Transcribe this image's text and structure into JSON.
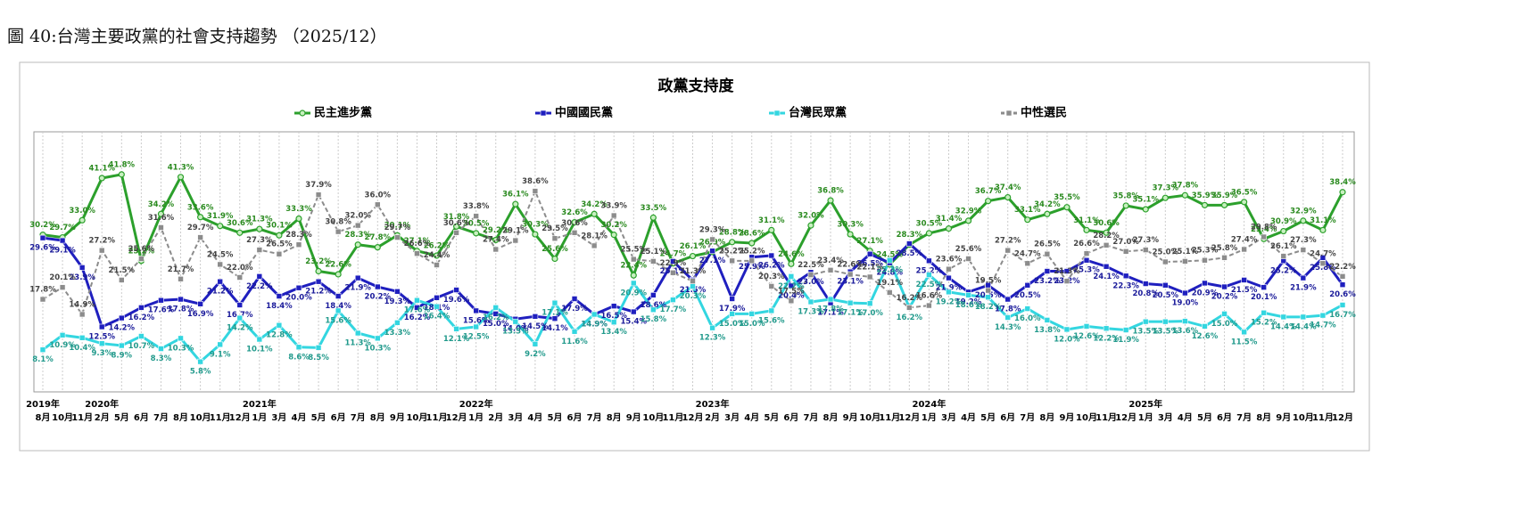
{
  "caption": "圖 40:台灣主要政黨的社會支持趨勢 （2025/12）",
  "chart_data": {
    "type": "line",
    "title": "政黨支持度",
    "ylim": [
      0,
      50
    ],
    "xgrid": true,
    "legend": "top",
    "categories": [
      "8月",
      "10月",
      "11月",
      "2月",
      "5月",
      "6月",
      "7月",
      "8月",
      "10月",
      "11月",
      "12月",
      "1月",
      "3月",
      "4月",
      "5月",
      "6月",
      "7月",
      "8月",
      "9月",
      "10月",
      "11月",
      "12月",
      "1月",
      "2月",
      "3月",
      "4月",
      "5月",
      "6月",
      "7月",
      "8月",
      "9月",
      "10月",
      "11月",
      "12月",
      "2月",
      "3月",
      "4月",
      "5月",
      "6月",
      "7月",
      "8月",
      "9月",
      "10月",
      "11月",
      "12月",
      "1月",
      "3月",
      "4月",
      "5月",
      "6月",
      "7月",
      "8月",
      "9月",
      "10月",
      "11月",
      "12月",
      "1月",
      "3月",
      "4月",
      "5月",
      "6月",
      "7月",
      "8月",
      "9月",
      "10月",
      "11月",
      "12月"
    ],
    "year_labels": [
      "2019年",
      null,
      null,
      "2020年",
      null,
      null,
      null,
      null,
      null,
      null,
      null,
      "2021年",
      null,
      null,
      null,
      null,
      null,
      null,
      null,
      null,
      null,
      null,
      "2022年",
      null,
      null,
      null,
      null,
      null,
      null,
      null,
      null,
      null,
      null,
      null,
      "2023年",
      null,
      null,
      null,
      null,
      null,
      null,
      null,
      null,
      null,
      null,
      "2024年",
      null,
      null,
      null,
      null,
      null,
      null,
      null,
      null,
      null,
      null,
      "2025年",
      null,
      null,
      null,
      null,
      null,
      null,
      null,
      null,
      null,
      null
    ],
    "series": [
      {
        "name": "民主進步黨",
        "color": "#2ca02c",
        "label_color": "#2a8a1f",
        "marker": "circle",
        "dash": false,
        "values": [
          30.2,
          29.7,
          33.0,
          41.1,
          41.8,
          25.2,
          34.2,
          41.3,
          33.6,
          31.9,
          30.6,
          31.3,
          30.1,
          33.3,
          23.2,
          22.6,
          28.3,
          27.8,
          30.1,
          27.1,
          26.2,
          31.8,
          30.5,
          29.2,
          36.1,
          30.3,
          25.6,
          32.6,
          34.2,
          30.2,
          22.4,
          33.5,
          24.7,
          26.1,
          26.9,
          28.8,
          28.6,
          31.1,
          24.6,
          32.0,
          36.8,
          30.3,
          27.1,
          24.5,
          28.3,
          30.5,
          31.4,
          32.9,
          36.7,
          37.4,
          33.1,
          34.2,
          35.5,
          31.1,
          30.6,
          35.8,
          35.1,
          37.3,
          37.8,
          35.9,
          35.9,
          36.5,
          29.4,
          30.9,
          32.9,
          31.1,
          38.4
        ],
        "value_labels": [
          "30.2%",
          "29.7%",
          "33.0%",
          "41.1%",
          "41.8%",
          "25.2%",
          "34.2%",
          "41.3%",
          "33.6%",
          "31.9%",
          "30.6%",
          "31.3%",
          "30.1%",
          "33.3%",
          "23.2%",
          "22.6%",
          "28.3%",
          "27.8%",
          "30.1%",
          "27.1%",
          "26.2%",
          "31.8%",
          "30.5%",
          "29.2%",
          "36.1%",
          "30.3%",
          "25.6%",
          "32.6%",
          "34.2%",
          "30.2%",
          "22.4%",
          "33.5%",
          "24.7%",
          "26.1%",
          "26.9%",
          "28.8%",
          "28.6%",
          "31.1%",
          "24.6%",
          "32.0%",
          "36.8%",
          "30.3%",
          "27.1%",
          "24.5%",
          "28.3%",
          "30.5%",
          "31.4%",
          "32.9%",
          "36.7%",
          "37.4%",
          "33.1%",
          "34.2%",
          "35.5%",
          "31.1%",
          "30.6%",
          "35.8%",
          "35.1%",
          "37.3%",
          "37.8%",
          "35.9%",
          "35.9%",
          "36.5%",
          "29.4%",
          "30.9%",
          "32.9%",
          "31.1%",
          "38.4%"
        ]
      },
      {
        "name": "中國國民黨",
        "color": "#1f1fbf",
        "label_color": "#1a1a9a",
        "marker": "square",
        "dash": false,
        "values": [
          29.6,
          29.1,
          23.9,
          12.5,
          14.2,
          16.2,
          17.6,
          17.8,
          16.9,
          21.2,
          16.7,
          22.2,
          18.4,
          20.0,
          21.2,
          18.4,
          21.9,
          20.2,
          19.3,
          16.2,
          18.1,
          19.6,
          15.6,
          15.0,
          14.0,
          14.5,
          14.1,
          17.9,
          14.9,
          16.5,
          15.4,
          18.6,
          25.1,
          21.5,
          27.1,
          17.9,
          25.9,
          26.2,
          20.4,
          23.0,
          17.1,
          23.1,
          26.5,
          24.8,
          28.5,
          25.2,
          21.9,
          19.2,
          20.5,
          17.8,
          20.5,
          23.2,
          23.2,
          25.3,
          24.1,
          22.3,
          20.8,
          20.5,
          19.0,
          20.9,
          20.2,
          21.5,
          20.1,
          25.2,
          21.9,
          25.8,
          20.6
        ],
        "value_labels": [
          "29.6%",
          "29.1%",
          "23.9%",
          "12.5%",
          "14.2%",
          "16.2%",
          "17.6%",
          "17.8%",
          "16.9%",
          "21.2%",
          "16.7%",
          "22.2%",
          "18.4%",
          "20.0%",
          "21.2%",
          "18.4%",
          "21.9%",
          "20.2%",
          "19.3%",
          "16.2%",
          "18.1%",
          "19.6%",
          "15.6%",
          "15.0%",
          "14.0%",
          "14.5%",
          "14.1%",
          "17.9%",
          "14.9%",
          "16.5%",
          "15.4%",
          "18.6%",
          "25.1%",
          "21.5%",
          "27.1%",
          "17.9%",
          "25.9%",
          "26.2%",
          "20.4%",
          "23.0%",
          "17.1%",
          "23.1%",
          "26.5%",
          "24.8%",
          "28.5%",
          "25.2%",
          "21.9%",
          "19.2%",
          "20.5%",
          "17.8%",
          "20.5%",
          "23.2%",
          "23.2%",
          "25.3%",
          "24.1%",
          "22.3%",
          "20.8%",
          "20.5%",
          "19.0%",
          "20.9%",
          "20.2%",
          "21.5%",
          "20.1%",
          "25.2%",
          "21.9%",
          "25.8%",
          "20.6%"
        ]
      },
      {
        "name": "台灣民眾黨",
        "color": "#33d6e0",
        "label_color": "#229a8c",
        "marker": "square",
        "dash": false,
        "values": [
          8.1,
          10.9,
          10.4,
          9.3,
          8.9,
          10.7,
          8.3,
          10.3,
          5.8,
          9.1,
          14.2,
          10.1,
          12.8,
          8.6,
          8.5,
          15.6,
          11.3,
          10.3,
          13.3,
          17.6,
          16.4,
          12.1,
          12.5,
          16.2,
          13.5,
          9.2,
          17.1,
          11.6,
          14.9,
          13.4,
          20.9,
          15.8,
          17.7,
          20.3,
          12.3,
          15.0,
          15.0,
          15.6,
          22.2,
          17.3,
          17.8,
          17.1,
          17.0,
          25.3,
          16.2,
          22.5,
          19.2,
          18.6,
          18.2,
          14.3,
          16.0,
          13.8,
          12.0,
          12.6,
          12.2,
          11.9,
          13.5,
          13.5,
          13.6,
          12.6,
          15.0,
          11.5,
          15.2,
          14.4,
          14.4,
          14.7,
          16.7
        ],
        "value_labels": [
          "8.1%",
          "10.9%",
          "10.4%",
          "9.3%",
          "8.9%",
          "10.7%",
          "8.3%",
          "10.3%",
          "5.8%",
          "9.1%",
          "14.2%",
          "10.1%",
          "12.8%",
          "8.6%",
          "8.5%",
          "15.6%",
          "11.3%",
          "10.3%",
          "13.3%",
          "17.6%",
          "16.4%",
          "12.1%",
          "12.5%",
          "16.2%",
          "13.5%",
          "9.2%",
          "17.1%",
          "11.6%",
          "14.9%",
          "13.4%",
          "20.9%",
          "15.8%",
          "17.7%",
          "20.3%",
          "12.3%",
          "15.0%",
          "15.0%",
          "15.6%",
          "22.2%",
          "17.3%",
          "17.8%",
          "17.1%",
          "17.0%",
          "25.3%",
          "16.2%",
          "22.5%",
          "19.2%",
          "18.6%",
          "18.2%",
          "14.3%",
          "16.0%",
          "13.8%",
          "12.0%",
          "12.6%",
          "12.2%",
          "11.9%",
          "13.5%",
          "13.5%",
          "13.6%",
          "12.6%",
          "15.0%",
          "11.5%",
          "15.2%",
          "14.4%",
          "14.4%",
          "14.7%",
          "16.7%"
        ]
      },
      {
        "name": "中性選民",
        "color": "#8c8c8c",
        "label_color": "#444444",
        "marker": "square",
        "dash": true,
        "values": [
          17.8,
          20.1,
          14.9,
          27.2,
          21.5,
          25.6,
          31.6,
          21.7,
          29.7,
          24.5,
          22.0,
          27.3,
          26.5,
          28.3,
          37.9,
          30.8,
          32.0,
          36.0,
          29.7,
          26.6,
          24.4,
          30.6,
          33.8,
          27.4,
          29.1,
          38.6,
          29.5,
          30.6,
          28.1,
          33.9,
          25.5,
          25.1,
          22.9,
          21.3,
          29.3,
          25.2,
          25.2,
          20.3,
          17.5,
          22.5,
          23.4,
          22.6,
          22.1,
          19.1,
          16.2,
          16.6,
          23.6,
          25.6,
          19.5,
          27.2,
          24.7,
          26.5,
          21.3,
          26.6,
          28.2,
          27.0,
          27.3,
          25.0,
          25.1,
          25.3,
          25.8,
          27.4,
          29.8,
          26.1,
          27.3,
          24.7,
          22.2
        ],
        "value_labels": [
          "17.8%",
          "20.1%",
          "14.9%",
          "27.2%",
          "21.5%",
          "25.6%",
          "31.6%",
          "21.7%",
          "29.7%",
          "24.5%",
          "22.0%",
          "27.3%",
          "26.5%",
          "28.3%",
          "37.9%",
          "30.8%",
          "32.0%",
          "36.0%",
          "29.7%",
          "26.6%",
          "24.4%",
          "30.6%",
          "33.8%",
          "27.4%",
          "29.1%",
          "38.6%",
          "29.5%",
          "30.6%",
          "28.1%",
          "33.9%",
          "25.5%",
          "25.1%",
          "22.9%",
          "21.3%",
          "29.3%",
          "25.2%",
          "25.2%",
          "20.3%",
          "17.5%",
          "22.5%",
          "23.4%",
          "22.6%",
          "22.1%",
          "19.1%",
          "16.2%",
          "16.6%",
          "23.6%",
          "25.6%",
          "19.5%",
          "27.2%",
          "24.7%",
          "26.5%",
          "21.3%",
          "26.6%",
          "28.2%",
          "27.0%",
          "27.3%",
          "25.0%",
          "25.1%",
          "25.3%",
          "25.8%",
          "27.4%",
          "29.8%",
          "26.1%",
          "27.3%",
          "24.7%",
          "22.2%"
        ]
      }
    ]
  }
}
